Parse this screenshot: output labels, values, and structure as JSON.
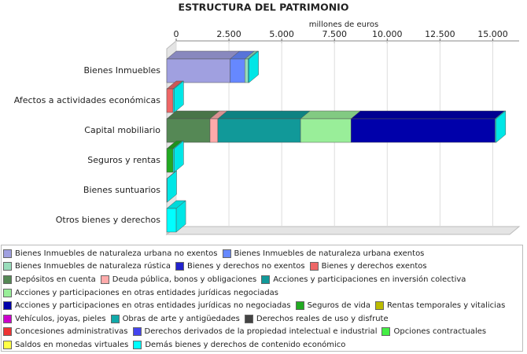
{
  "chart_data": {
    "type": "bar",
    "orientation": "horizontal",
    "stacked": true,
    "title": "ESTRUCTURA DEL PATRIMONIO",
    "xlabel": "millones de euros",
    "categories": [
      "Bienes Inmuebles",
      "Afectos a actividades económicas",
      "Capital mobiliario",
      "Seguros y rentas",
      "Bienes suntuarios",
      "Otros bienes y derechos"
    ],
    "xlim": [
      0,
      16250
    ],
    "xticks": [
      0,
      {
        "value": 2500,
        "label": "2.500"
      },
      {
        "value": 5000,
        "label": "5.000"
      },
      {
        "value": 7500,
        "label": "7.500"
      },
      {
        "value": 10000,
        "label": "10.000"
      },
      {
        "value": 12500,
        "label": "12.500"
      },
      {
        "value": 15000,
        "label": "15.000"
      }
    ],
    "series": [
      {
        "name": "Bienes Inmuebles de naturaleza urbana no exentos",
        "color": "#a0a0e0",
        "values": [
          3000,
          0,
          0,
          0,
          0,
          0
        ]
      },
      {
        "name": "Bienes Inmuebles de naturaleza urbana exentos",
        "color": "#6688ff",
        "values": [
          700,
          0,
          0,
          0,
          0,
          0
        ]
      },
      {
        "name": "Bienes Inmuebles de naturaleza rústica",
        "color": "#99ddbb",
        "values": [
          150,
          0,
          0,
          0,
          0,
          0
        ]
      },
      {
        "name": "Bienes y derechos no exentos",
        "color": "#2222cc",
        "values": [
          0,
          0,
          0,
          0,
          0,
          0
        ]
      },
      {
        "name": "Bienes y derechos exentos",
        "color": "#ee6666",
        "values": [
          0,
          300,
          0,
          0,
          0,
          0
        ]
      },
      {
        "name": "Depósitos en cuenta",
        "color": "#558855",
        "values": [
          0,
          0,
          2050,
          0,
          0,
          0
        ]
      },
      {
        "name": "Deuda pública, bonos y obligaciones",
        "color": "#ffaaaa",
        "values": [
          0,
          0,
          370,
          0,
          0,
          0
        ]
      },
      {
        "name": "Acciones y participaciones en inversión colectiva",
        "color": "#119999",
        "values": [
          0,
          0,
          3920,
          0,
          0,
          0
        ]
      },
      {
        "name": "Acciones y participaciones en otras entidades jurídicas negociadas",
        "color": "#99ee99",
        "values": [
          0,
          0,
          2390,
          0,
          0,
          0
        ]
      },
      {
        "name": "Acciones y participaciones en otras entidades jurídicas no negociadas",
        "color": "#0000aa",
        "values": [
          0,
          0,
          6830,
          0,
          0,
          0
        ]
      },
      {
        "name": "Seguros de vida",
        "color": "#22aa22",
        "values": [
          0,
          0,
          0,
          300,
          0,
          0
        ]
      },
      {
        "name": "Rentas temporales y vitalicias",
        "color": "#bbbb00",
        "values": [
          0,
          0,
          0,
          0,
          0,
          0
        ]
      },
      {
        "name": "Vehículos, joyas, pieles",
        "color": "#cc00cc",
        "values": [
          0,
          0,
          0,
          0,
          0,
          0
        ]
      },
      {
        "name": "Obras de arte y antigüedades",
        "color": "#11aaaa",
        "values": [
          0,
          0,
          0,
          0,
          0,
          0
        ]
      },
      {
        "name": "Derechos reales de uso y disfrute",
        "color": "#444444",
        "values": [
          0,
          0,
          0,
          0,
          0,
          0
        ]
      },
      {
        "name": "Concesiones administrativas",
        "color": "#ee3333",
        "values": [
          0,
          0,
          0,
          0,
          0,
          0
        ]
      },
      {
        "name": "Derechos derivados de la propiedad intelectual e industrial",
        "color": "#4444ee",
        "values": [
          0,
          0,
          0,
          0,
          0,
          0
        ]
      },
      {
        "name": "Opciones contractuales",
        "color": "#44ee44",
        "values": [
          0,
          0,
          0,
          0,
          0,
          0
        ]
      },
      {
        "name": "Saldos en monedas virtuales",
        "color": "#ffff44",
        "values": [
          0,
          0,
          0,
          0,
          0,
          0
        ]
      },
      {
        "name": "Demás bienes y derechos de contenido económico",
        "color": "#00ffff",
        "values": [
          50,
          50,
          50,
          50,
          20,
          450
        ]
      }
    ]
  }
}
